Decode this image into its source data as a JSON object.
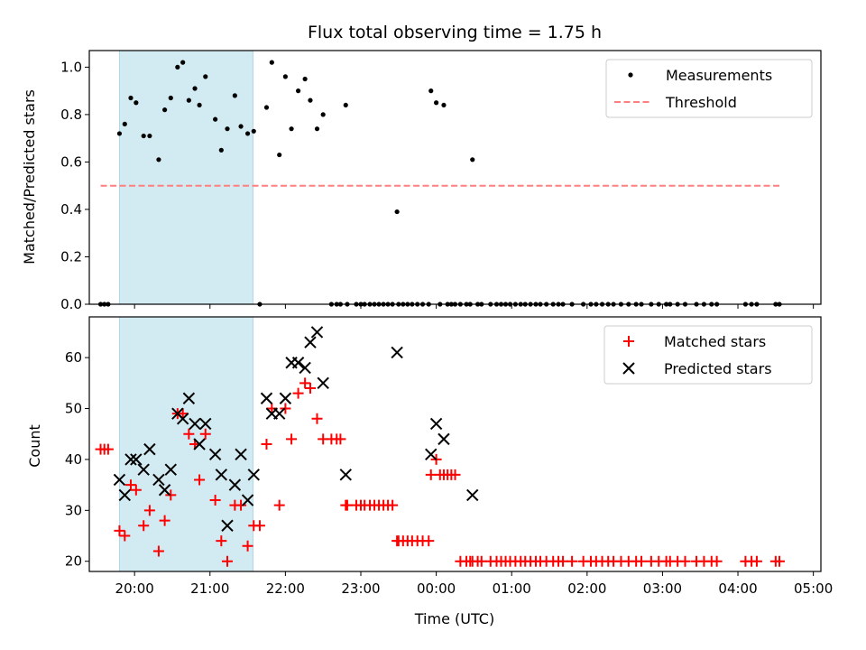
{
  "title": "Flux total observing time = 1.75 h",
  "colors": {
    "shade": "#add8e6",
    "measurement": "#000000",
    "threshold": "#ff7f7f",
    "matched": "#ff0000",
    "predicted": "#000000"
  },
  "chart_data": [
    {
      "type": "scatter",
      "ylabel": "Matched/Predicted stars",
      "xlim": [
        -0.6,
        9.1
      ],
      "ylim": [
        0,
        1.07
      ],
      "yticks": [
        0.0,
        0.2,
        0.4,
        0.6,
        0.8,
        1.0
      ],
      "ytick_labels": [
        "0.0",
        "0.2",
        "0.4",
        "0.6",
        "0.8",
        "1.0"
      ],
      "legend_location": "upper right",
      "shaded_interval": [
        -0.2,
        1.57
      ],
      "threshold": {
        "name": "Threshold",
        "value": 0.5,
        "x_range": [
          -0.45,
          8.55
        ]
      },
      "series": [
        {
          "name": "Measurements",
          "marker": "dot",
          "x": [
            -0.45,
            -0.4,
            -0.35,
            -0.2,
            -0.13,
            -0.05,
            0.02,
            0.12,
            0.2,
            0.32,
            0.4,
            0.48,
            0.57,
            0.64,
            0.72,
            0.8,
            0.86,
            0.94,
            1.07,
            1.15,
            1.23,
            1.33,
            1.41,
            1.5,
            1.58,
            1.66,
            1.75,
            1.82,
            1.92,
            2.0,
            2.08,
            2.17,
            2.26,
            2.33,
            2.42,
            2.5,
            2.61,
            2.68,
            2.73,
            2.8,
            2.82,
            2.94,
            3.0,
            3.05,
            3.12,
            3.18,
            3.24,
            3.3,
            3.36,
            3.42,
            3.48,
            3.5,
            3.56,
            3.62,
            3.68,
            3.75,
            3.82,
            3.9,
            3.93,
            4.0,
            4.05,
            4.1,
            4.15,
            4.2,
            4.25,
            4.32,
            4.4,
            4.45,
            4.48,
            4.55,
            4.6,
            4.72,
            4.8,
            4.86,
            4.92,
            4.98,
            5.05,
            5.12,
            5.18,
            5.25,
            5.32,
            5.38,
            5.46,
            5.55,
            5.62,
            5.68,
            5.8,
            5.95,
            6.05,
            6.12,
            6.2,
            6.28,
            6.35,
            6.45,
            6.55,
            6.65,
            6.72,
            6.85,
            6.95,
            7.05,
            7.1,
            7.2,
            7.3,
            7.45,
            7.55,
            7.65,
            7.72,
            8.1,
            8.18,
            8.25,
            8.5,
            8.55
          ],
          "y": [
            0.0,
            0.0,
            0.0,
            0.72,
            0.76,
            0.87,
            0.85,
            0.71,
            0.71,
            0.61,
            0.82,
            0.87,
            1.0,
            1.02,
            0.86,
            0.91,
            0.84,
            0.96,
            0.78,
            0.65,
            0.74,
            0.88,
            0.75,
            0.72,
            0.73,
            0.0,
            0.83,
            1.02,
            0.63,
            0.96,
            0.74,
            0.9,
            0.95,
            0.86,
            0.74,
            0.8,
            0.0,
            0.0,
            0.0,
            0.84,
            0.0,
            0.0,
            0.0,
            0.0,
            0.0,
            0.0,
            0.0,
            0.0,
            0.0,
            0.0,
            0.39,
            0.0,
            0.0,
            0.0,
            0.0,
            0.0,
            0.0,
            0.0,
            0.9,
            0.85,
            0.0,
            0.84,
            0.0,
            0.0,
            0.0,
            0.0,
            0.0,
            0.0,
            0.61,
            0.0,
            0.0,
            0.0,
            0.0,
            0.0,
            0.0,
            0.0,
            0.0,
            0.0,
            0.0,
            0.0,
            0.0,
            0.0,
            0.0,
            0.0,
            0.0,
            0.0,
            0.0,
            0.0,
            0.0,
            0.0,
            0.0,
            0.0,
            0.0,
            0.0,
            0.0,
            0.0,
            0.0,
            0.0,
            0.0,
            0.0,
            0.0,
            0.0,
            0.0,
            0.0,
            0.0,
            0.0,
            0.0,
            0.0,
            0.0,
            0.0,
            0.0,
            0.0
          ]
        }
      ]
    },
    {
      "type": "scatter",
      "ylabel": "Count",
      "xlabel": "Time (UTC)",
      "xlim": [
        -0.6,
        9.1
      ],
      "ylim": [
        18,
        68
      ],
      "xticks": [
        0,
        1,
        2,
        3,
        4,
        5,
        6,
        7,
        8,
        9
      ],
      "xtick_labels": [
        "20:00",
        "21:00",
        "22:00",
        "23:00",
        "00:00",
        "01:00",
        "02:00",
        "03:00",
        "04:00",
        "05:00"
      ],
      "yticks": [
        20,
        30,
        40,
        50,
        60
      ],
      "ytick_labels": [
        "20",
        "30",
        "40",
        "50",
        "60"
      ],
      "legend_location": "upper right",
      "shaded_interval": [
        -0.2,
        1.57
      ],
      "series": [
        {
          "name": "Matched stars",
          "marker": "plus",
          "x": [
            -0.45,
            -0.4,
            -0.35,
            -0.2,
            -0.13,
            -0.05,
            0.02,
            0.12,
            0.2,
            0.32,
            0.4,
            0.48,
            0.57,
            0.64,
            0.72,
            0.8,
            0.86,
            0.94,
            1.07,
            1.15,
            1.23,
            1.33,
            1.41,
            1.5,
            1.58,
            1.66,
            1.75,
            1.82,
            1.92,
            2.0,
            2.08,
            2.17,
            2.26,
            2.33,
            2.42,
            2.5,
            2.61,
            2.68,
            2.73,
            2.8,
            2.82,
            2.94,
            3.0,
            3.05,
            3.12,
            3.18,
            3.24,
            3.3,
            3.36,
            3.42,
            3.48,
            3.5,
            3.56,
            3.62,
            3.68,
            3.75,
            3.82,
            3.9,
            3.93,
            4.0,
            4.05,
            4.1,
            4.15,
            4.2,
            4.25,
            4.32,
            4.4,
            4.45,
            4.48,
            4.55,
            4.6,
            4.72,
            4.8,
            4.86,
            4.92,
            4.98,
            5.05,
            5.12,
            5.18,
            5.25,
            5.32,
            5.38,
            5.46,
            5.55,
            5.62,
            5.68,
            5.8,
            5.95,
            6.05,
            6.12,
            6.2,
            6.28,
            6.35,
            6.45,
            6.55,
            6.65,
            6.72,
            6.85,
            6.95,
            7.05,
            7.1,
            7.2,
            7.3,
            7.45,
            7.55,
            7.65,
            7.72,
            8.1,
            8.18,
            8.25,
            8.5,
            8.55
          ],
          "y": [
            42,
            42,
            42,
            26,
            25,
            35,
            34,
            27,
            30,
            22,
            28,
            33,
            49,
            49,
            45,
            43,
            36,
            45,
            32,
            24,
            20,
            31,
            31,
            23,
            27,
            27,
            43,
            50,
            31,
            50,
            44,
            53,
            55,
            54,
            48,
            44,
            44,
            44,
            44,
            31,
            31,
            31,
            31,
            31,
            31,
            31,
            31,
            31,
            31,
            31,
            24,
            24,
            24,
            24,
            24,
            24,
            24,
            24,
            37,
            40,
            37,
            37,
            37,
            37,
            37,
            20,
            20,
            20,
            20,
            20,
            20,
            20,
            20,
            20,
            20,
            20,
            20,
            20,
            20,
            20,
            20,
            20,
            20,
            20,
            20,
            20,
            20,
            20,
            20,
            20,
            20,
            20,
            20,
            20,
            20,
            20,
            20,
            20,
            20,
            20,
            20,
            20,
            20,
            20,
            20,
            20,
            20,
            20,
            20,
            20,
            20,
            20
          ]
        },
        {
          "name": "Predicted stars",
          "marker": "x",
          "x": [
            -0.2,
            -0.13,
            -0.05,
            0.02,
            0.12,
            0.2,
            0.32,
            0.4,
            0.48,
            0.57,
            0.64,
            0.72,
            0.8,
            0.86,
            0.94,
            1.07,
            1.15,
            1.23,
            1.33,
            1.41,
            1.5,
            1.58,
            1.75,
            1.82,
            1.92,
            2.0,
            2.08,
            2.17,
            2.26,
            2.33,
            2.42,
            2.5,
            2.8,
            3.48,
            3.93,
            4.0,
            4.1,
            4.48
          ],
          "y": [
            36,
            33,
            40,
            40,
            38,
            42,
            36,
            34,
            38,
            49,
            48,
            52,
            47,
            43,
            47,
            41,
            37,
            27,
            35,
            41,
            32,
            37,
            52,
            49,
            49,
            52,
            59,
            59,
            58,
            63,
            65,
            55,
            37,
            61,
            41,
            47,
            44,
            33
          ]
        }
      ]
    }
  ]
}
